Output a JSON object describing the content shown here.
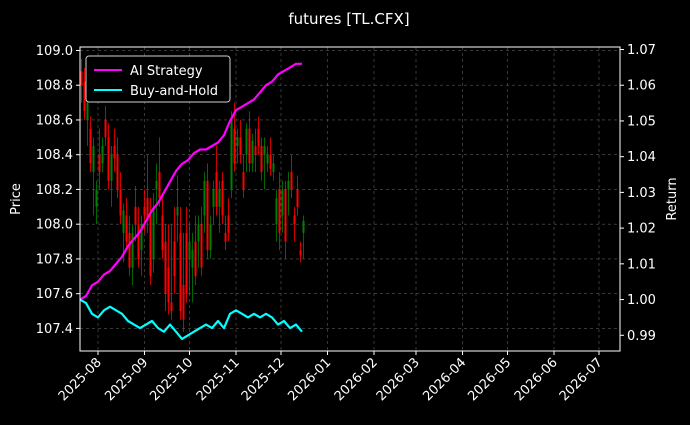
{
  "chart_data": {
    "type": "line",
    "title": "futures [TL.CFX]",
    "ylabel": "Price",
    "y2label": "Return",
    "grid": true,
    "legend_position": "top-left",
    "background": "#000000",
    "xlim": [
      "2025-07-20",
      "2026-07-15"
    ],
    "ylim": [
      107.27,
      109.02
    ],
    "y2lim": [
      0.9856,
      1.0707
    ],
    "x_ticks": [
      "2025-08-01",
      "2025-09-01",
      "2025-10-01",
      "2025-11-01",
      "2025-12-01",
      "2026-01-01",
      "2026-02-01",
      "2026-03-01",
      "2026-04-01",
      "2026-05-01",
      "2026-06-01",
      "2026-07-01"
    ],
    "x_tick_labels": [
      "2025-08",
      "2025-09",
      "2025-10",
      "2025-11",
      "2025-12",
      "2026-01",
      "2026-02",
      "2026-03",
      "2026-04",
      "2026-05",
      "2026-06",
      "2026-07"
    ],
    "y_ticks": [
      107.4,
      107.6,
      107.8,
      108.0,
      108.2,
      108.4,
      108.6,
      108.8,
      109.0
    ],
    "y_tick_labels": [
      "107.4",
      "107.6",
      "107.8",
      "108.0",
      "108.2",
      "108.4",
      "108.6",
      "108.8",
      "109.0"
    ],
    "y2_ticks": [
      0.99,
      1.0,
      1.01,
      1.02,
      1.03,
      1.04,
      1.05,
      1.06,
      1.07
    ],
    "y2_tick_labels": [
      "0.99",
      "1.00",
      "1.01",
      "1.02",
      "1.03",
      "1.04",
      "1.05",
      "1.06",
      "1.07"
    ],
    "series": [
      {
        "name": "AI Strategy",
        "axis": "right",
        "color": "#ff00ff",
        "points": [
          [
            "2025-07-20",
            1.0
          ],
          [
            "2025-07-24",
            1.001
          ],
          [
            "2025-07-28",
            1.004
          ],
          [
            "2025-08-01",
            1.005
          ],
          [
            "2025-08-05",
            1.007
          ],
          [
            "2025-08-09",
            1.008
          ],
          [
            "2025-08-13",
            1.01
          ],
          [
            "2025-08-17",
            1.012
          ],
          [
            "2025-08-21",
            1.015
          ],
          [
            "2025-08-25",
            1.017
          ],
          [
            "2025-08-29",
            1.019
          ],
          [
            "2025-09-02",
            1.022
          ],
          [
            "2025-09-06",
            1.025
          ],
          [
            "2025-09-10",
            1.027
          ],
          [
            "2025-09-14",
            1.03
          ],
          [
            "2025-09-18",
            1.033
          ],
          [
            "2025-09-22",
            1.036
          ],
          [
            "2025-09-26",
            1.038
          ],
          [
            "2025-09-30",
            1.039
          ],
          [
            "2025-10-04",
            1.041
          ],
          [
            "2025-10-08",
            1.042
          ],
          [
            "2025-10-12",
            1.042
          ],
          [
            "2025-10-16",
            1.043
          ],
          [
            "2025-10-20",
            1.044
          ],
          [
            "2025-10-24",
            1.046
          ],
          [
            "2025-10-28",
            1.05
          ],
          [
            "2025-11-01",
            1.053
          ],
          [
            "2025-11-05",
            1.054
          ],
          [
            "2025-11-09",
            1.055
          ],
          [
            "2025-11-13",
            1.056
          ],
          [
            "2025-11-17",
            1.058
          ],
          [
            "2025-11-21",
            1.06
          ],
          [
            "2025-11-25",
            1.061
          ],
          [
            "2025-11-29",
            1.063
          ],
          [
            "2025-12-03",
            1.064
          ],
          [
            "2025-12-07",
            1.065
          ],
          [
            "2025-12-11",
            1.066
          ],
          [
            "2025-12-15",
            1.066
          ]
        ]
      },
      {
        "name": "Buy-and-Hold",
        "axis": "right",
        "color": "#00ffff",
        "points": [
          [
            "2025-07-20",
            1.0
          ],
          [
            "2025-07-24",
            0.999
          ],
          [
            "2025-07-28",
            0.996
          ],
          [
            "2025-08-01",
            0.995
          ],
          [
            "2025-08-05",
            0.997
          ],
          [
            "2025-08-09",
            0.998
          ],
          [
            "2025-08-13",
            0.997
          ],
          [
            "2025-08-17",
            0.996
          ],
          [
            "2025-08-21",
            0.994
          ],
          [
            "2025-08-25",
            0.993
          ],
          [
            "2025-08-29",
            0.992
          ],
          [
            "2025-09-02",
            0.993
          ],
          [
            "2025-09-06",
            0.994
          ],
          [
            "2025-09-10",
            0.992
          ],
          [
            "2025-09-14",
            0.991
          ],
          [
            "2025-09-18",
            0.993
          ],
          [
            "2025-09-22",
            0.991
          ],
          [
            "2025-09-26",
            0.989
          ],
          [
            "2025-09-30",
            0.99
          ],
          [
            "2025-10-04",
            0.991
          ],
          [
            "2025-10-08",
            0.992
          ],
          [
            "2025-10-12",
            0.993
          ],
          [
            "2025-10-16",
            0.992
          ],
          [
            "2025-10-20",
            0.994
          ],
          [
            "2025-10-24",
            0.992
          ],
          [
            "2025-10-28",
            0.996
          ],
          [
            "2025-11-01",
            0.997
          ],
          [
            "2025-11-05",
            0.996
          ],
          [
            "2025-11-09",
            0.995
          ],
          [
            "2025-11-13",
            0.996
          ],
          [
            "2025-11-17",
            0.995
          ],
          [
            "2025-11-21",
            0.996
          ],
          [
            "2025-11-25",
            0.995
          ],
          [
            "2025-11-29",
            0.993
          ],
          [
            "2025-12-03",
            0.994
          ],
          [
            "2025-12-07",
            0.992
          ],
          [
            "2025-12-11",
            0.993
          ],
          [
            "2025-12-15",
            0.991
          ]
        ]
      }
    ],
    "candles": {
      "axis": "left",
      "up_color": "#008000",
      "down_color": "#ff0000",
      "ohlc": [
        [
          "2025-07-21",
          108.88,
          108.95,
          108.7,
          108.8
        ],
        [
          "2025-07-23",
          108.82,
          108.9,
          108.6,
          108.65
        ],
        [
          "2025-07-25",
          108.6,
          108.75,
          108.45,
          108.7
        ],
        [
          "2025-07-27",
          108.55,
          108.62,
          108.3,
          108.35
        ],
        [
          "2025-07-29",
          108.3,
          108.5,
          108.05,
          108.45
        ],
        [
          "2025-07-31",
          108.1,
          108.25,
          108.0,
          108.2
        ],
        [
          "2025-08-02",
          108.4,
          108.55,
          108.2,
          108.3
        ],
        [
          "2025-08-04",
          108.35,
          108.5,
          108.3,
          108.45
        ],
        [
          "2025-08-06",
          108.6,
          108.68,
          108.45,
          108.5
        ],
        [
          "2025-08-08",
          108.5,
          108.58,
          108.2,
          108.25
        ],
        [
          "2025-08-10",
          108.25,
          108.45,
          108.1,
          108.4
        ],
        [
          "2025-08-12",
          108.45,
          108.55,
          108.3,
          108.38
        ],
        [
          "2025-08-14",
          108.4,
          108.5,
          108.15,
          108.2
        ],
        [
          "2025-08-16",
          108.2,
          108.3,
          108.0,
          108.05
        ],
        [
          "2025-08-18",
          107.95,
          108.12,
          107.78,
          108.08
        ],
        [
          "2025-08-20",
          108.05,
          108.15,
          107.85,
          107.9
        ],
        [
          "2025-08-22",
          107.95,
          108.05,
          107.7,
          107.75
        ],
        [
          "2025-08-24",
          107.75,
          108.0,
          107.65,
          107.95
        ],
        [
          "2025-08-26",
          108.1,
          108.22,
          107.9,
          108.0
        ],
        [
          "2025-08-28",
          108.0,
          108.1,
          107.75,
          107.8
        ],
        [
          "2025-08-30",
          107.85,
          108.05,
          107.7,
          108.0
        ],
        [
          "2025-09-01",
          108.1,
          108.2,
          107.95,
          108.05
        ],
        [
          "2025-09-03",
          108.15,
          108.4,
          107.95,
          108.02
        ],
        [
          "2025-09-05",
          108.05,
          108.15,
          107.65,
          107.7
        ],
        [
          "2025-09-07",
          107.8,
          108.18,
          107.72,
          108.1
        ],
        [
          "2025-09-09",
          108.2,
          108.35,
          108.0,
          108.25
        ],
        [
          "2025-09-11",
          108.3,
          108.5,
          108.1,
          108.15
        ],
        [
          "2025-09-13",
          108.05,
          108.15,
          107.8,
          107.85
        ],
        [
          "2025-09-15",
          107.9,
          108.0,
          107.5,
          107.6
        ],
        [
          "2025-09-17",
          107.75,
          108.0,
          107.48,
          107.55
        ],
        [
          "2025-09-19",
          107.55,
          108.0,
          107.45,
          107.5
        ],
        [
          "2025-09-21",
          107.9,
          108.1,
          107.6,
          107.7
        ],
        [
          "2025-09-23",
          108.05,
          108.28,
          107.9,
          108.1
        ],
        [
          "2025-09-25",
          107.95,
          108.1,
          107.45,
          107.5
        ],
        [
          "2025-09-27",
          107.65,
          107.95,
          107.38,
          107.45
        ],
        [
          "2025-09-29",
          107.95,
          108.1,
          107.55,
          107.6
        ],
        [
          "2025-10-01",
          107.8,
          108.0,
          107.6,
          107.9
        ],
        [
          "2025-10-03",
          107.75,
          107.95,
          107.55,
          107.85
        ],
        [
          "2025-10-05",
          107.9,
          108.05,
          107.65,
          107.7
        ],
        [
          "2025-10-07",
          107.9,
          108.05,
          107.75,
          108.0
        ],
        [
          "2025-10-09",
          108.0,
          108.1,
          107.7,
          107.75
        ],
        [
          "2025-10-11",
          108.05,
          108.3,
          107.95,
          108.25
        ],
        [
          "2025-10-13",
          108.25,
          108.35,
          107.8,
          107.85
        ],
        [
          "2025-10-15",
          107.85,
          108.05,
          107.8,
          108.0
        ],
        [
          "2025-10-17",
          108.1,
          108.25,
          108.0,
          108.2
        ],
        [
          "2025-10-19",
          108.3,
          108.45,
          108.05,
          108.1
        ],
        [
          "2025-10-21",
          108.1,
          108.25,
          107.95,
          108.2
        ],
        [
          "2025-10-23",
          108.25,
          108.3,
          108.0,
          108.05
        ],
        [
          "2025-10-25",
          107.95,
          108.05,
          107.85,
          107.9
        ],
        [
          "2025-10-27",
          108.05,
          108.15,
          107.9,
          107.95
        ],
        [
          "2025-10-29",
          108.2,
          108.65,
          108.15,
          108.6
        ],
        [
          "2025-10-31",
          108.55,
          108.7,
          108.3,
          108.35
        ],
        [
          "2025-11-02",
          108.45,
          108.55,
          108.35,
          108.5
        ],
        [
          "2025-11-04",
          108.5,
          108.6,
          108.35,
          108.4
        ],
        [
          "2025-11-06",
          108.3,
          108.4,
          108.15,
          108.2
        ],
        [
          "2025-11-08",
          108.4,
          108.58,
          108.3,
          108.55
        ],
        [
          "2025-11-10",
          108.55,
          108.65,
          108.3,
          108.35
        ],
        [
          "2025-11-12",
          108.35,
          108.52,
          108.3,
          108.48
        ],
        [
          "2025-11-14",
          108.45,
          108.55,
          108.3,
          108.4
        ],
        [
          "2025-11-16",
          108.55,
          108.62,
          108.4,
          108.45
        ],
        [
          "2025-11-18",
          108.45,
          108.5,
          108.25,
          108.3
        ],
        [
          "2025-11-20",
          108.4,
          108.5,
          108.2,
          108.45
        ],
        [
          "2025-11-22",
          108.35,
          108.45,
          108.3,
          108.4
        ],
        [
          "2025-11-24",
          108.4,
          108.5,
          108.28,
          108.32
        ],
        [
          "2025-11-26",
          108.3,
          108.4,
          108.25,
          108.35
        ],
        [
          "2025-11-28",
          108.0,
          108.2,
          107.9,
          108.15
        ],
        [
          "2025-11-30",
          108.2,
          108.3,
          107.85,
          107.95
        ],
        [
          "2025-12-02",
          108.05,
          108.25,
          107.95,
          108.2
        ],
        [
          "2025-12-04",
          108.2,
          108.25,
          107.8,
          107.9
        ],
        [
          "2025-12-06",
          108.2,
          108.3,
          108.05,
          108.25
        ],
        [
          "2025-12-08",
          108.3,
          108.4,
          108.15,
          108.2
        ],
        [
          "2025-12-10",
          108.05,
          108.1,
          107.9,
          108.0
        ],
        [
          "2025-12-12",
          108.2,
          108.28,
          108.05,
          108.1
        ],
        [
          "2025-12-14",
          107.85,
          107.9,
          107.78,
          107.82
        ],
        [
          "2025-12-16",
          107.95,
          108.05,
          107.8,
          108.02
        ]
      ]
    }
  }
}
